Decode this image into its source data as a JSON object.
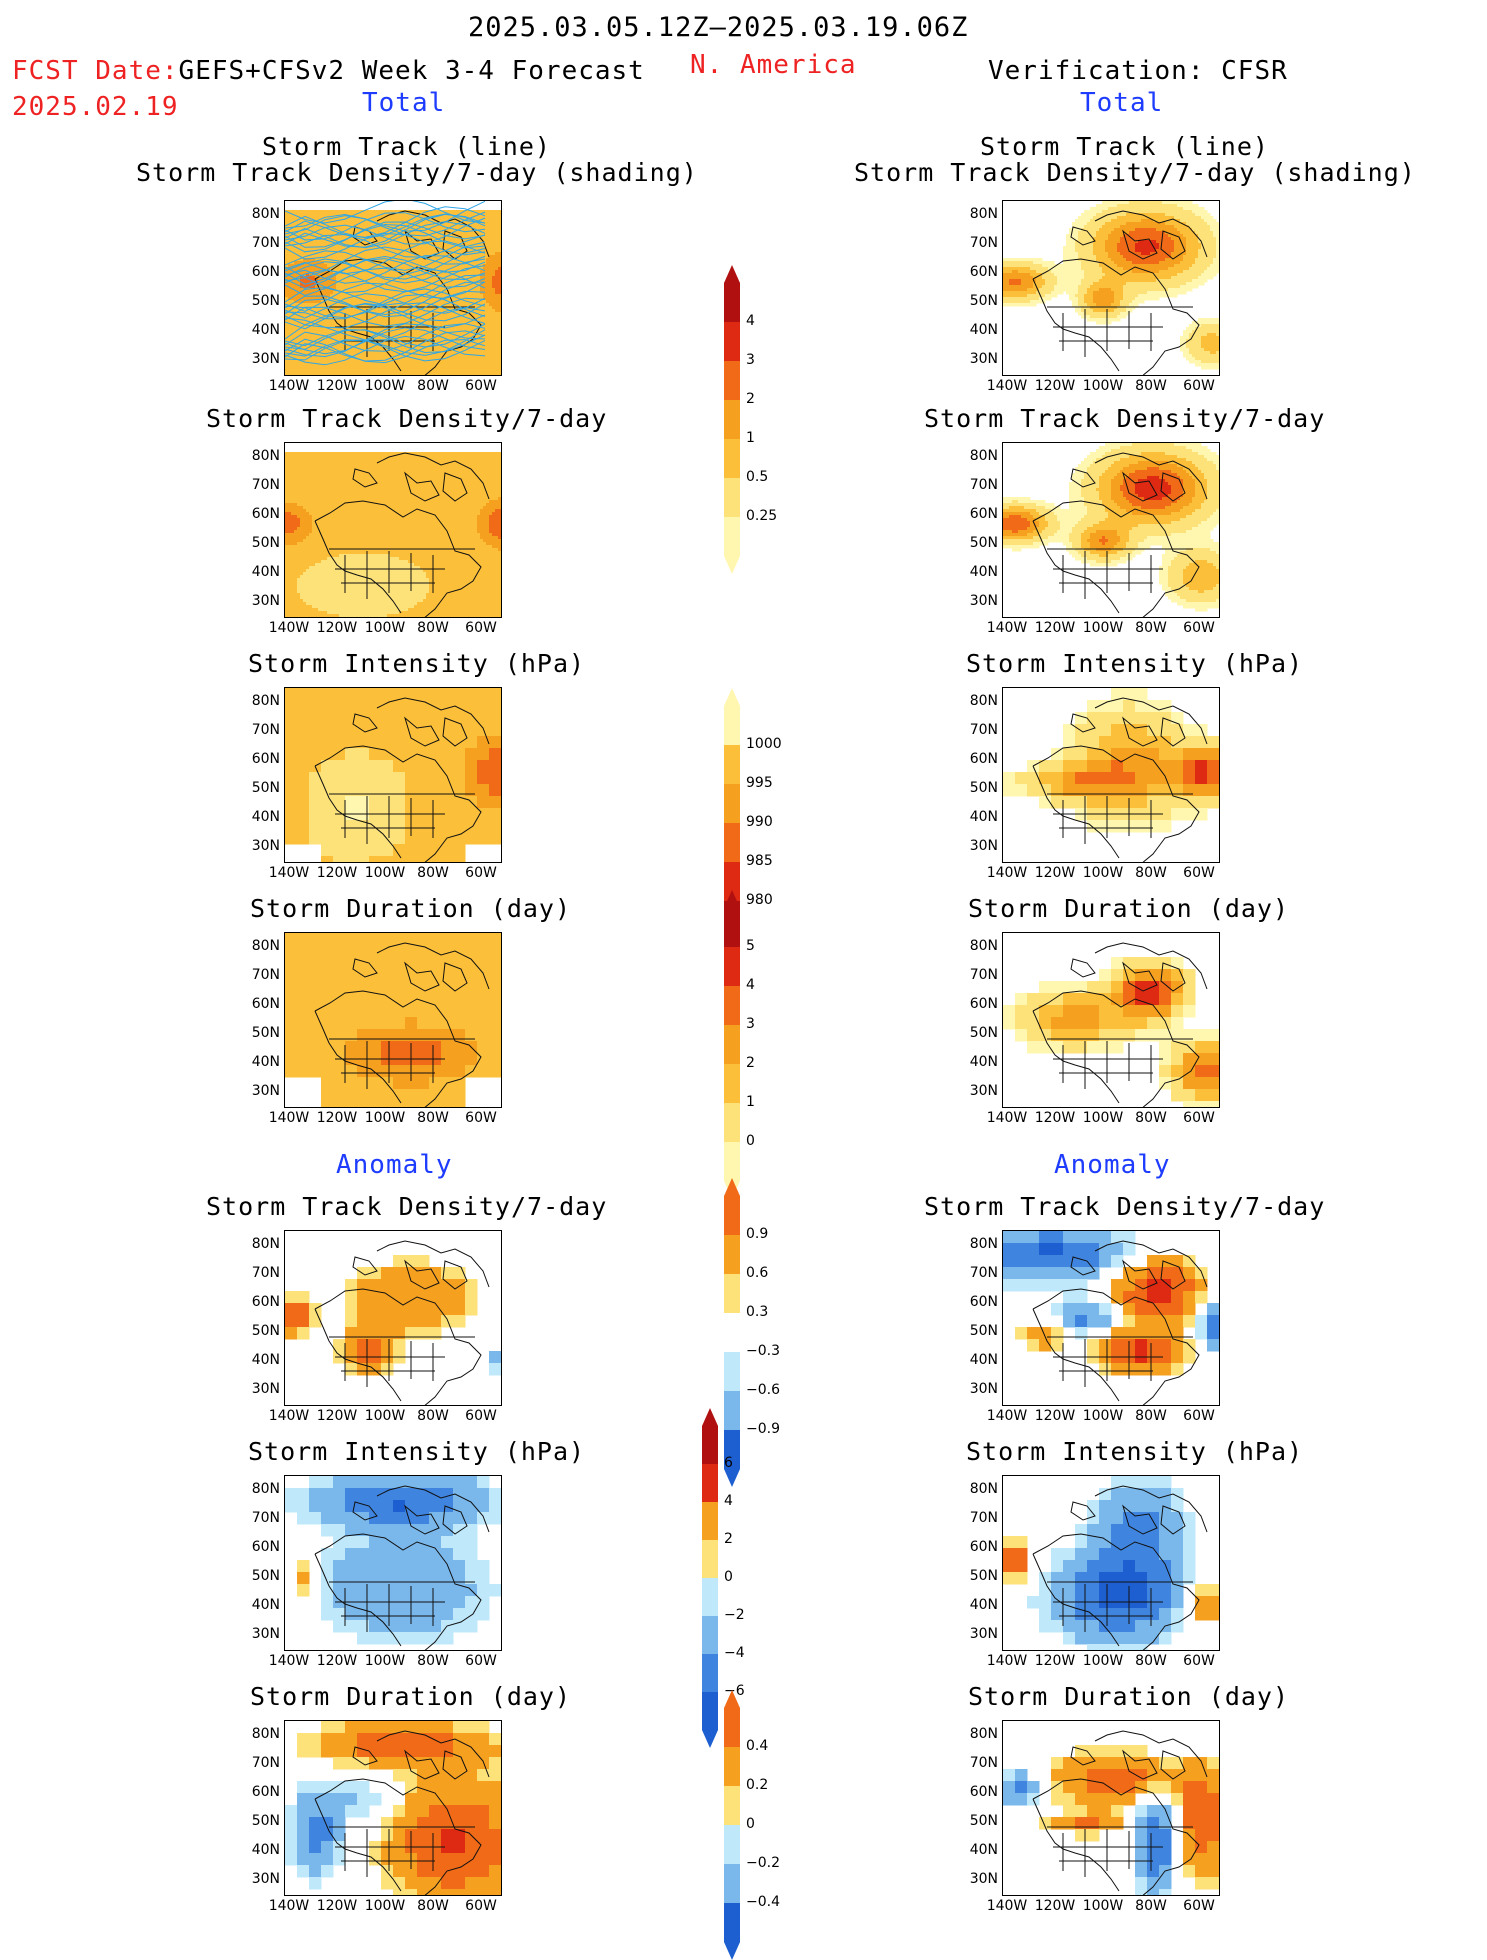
{
  "header": {
    "period": "2025.03.05.12Z–2025.03.19.06Z",
    "fcst_label": "FCST Date:",
    "fcst_model": "GEFS+CFSv2 Week 3-4 Forecast",
    "fcst_date": "2025.02.19",
    "region": "N. America",
    "verification": "Verification: CFSR",
    "left_section_total": "Total",
    "right_section_total": "Total",
    "left_section_anomaly": "Anomaly",
    "right_section_anomaly": "Anomaly"
  },
  "panel_titles": {
    "track_line": "Storm Track (line)",
    "track_shading": "Storm Track Density/7-day (shading)",
    "density": "Storm Track Density/7-day",
    "intensity": "Storm Intensity (hPa)",
    "duration": "Storm Duration (day)"
  },
  "axes": {
    "lat_labels": [
      "80N",
      "70N",
      "60N",
      "50N",
      "40N",
      "30N"
    ],
    "lon_labels": [
      "140W",
      "120W",
      "100W",
      "80W",
      "60W"
    ]
  },
  "colorbars": {
    "density_total": [
      "4",
      "3",
      "2",
      "1",
      "0.5",
      "0.25"
    ],
    "intensity_total": [
      "1000",
      "995",
      "990",
      "985",
      "980"
    ],
    "duration_total": [
      "5",
      "4",
      "3",
      "2",
      "1",
      "0"
    ],
    "density_anom": [
      "0.9",
      "0.6",
      "0.3",
      "−0.3",
      "−0.6",
      "−0.9"
    ],
    "intensity_anom": [
      "6",
      "4",
      "2",
      "0",
      "−2",
      "−4",
      "−6"
    ],
    "duration_anom": [
      "0.4",
      "0.2",
      "0",
      "−0.2",
      "−0.4"
    ]
  },
  "colors": {
    "pale_yellow": "#fff7b0",
    "light_yellow": "#fde27a",
    "yellow_orange": "#fbbf3a",
    "orange": "#f6a020",
    "orange_red": "#f06a18",
    "red": "#de2a12",
    "dark_red": "#b01010",
    "light_blue": "#bfe8fa",
    "mid_blue": "#7ab8ec",
    "blue": "#3f85e0",
    "dark_blue": "#1d5fd0",
    "track_line": "#2fa6e6",
    "title_red": "#ee2222",
    "title_blue": "#1e3cff"
  }
}
